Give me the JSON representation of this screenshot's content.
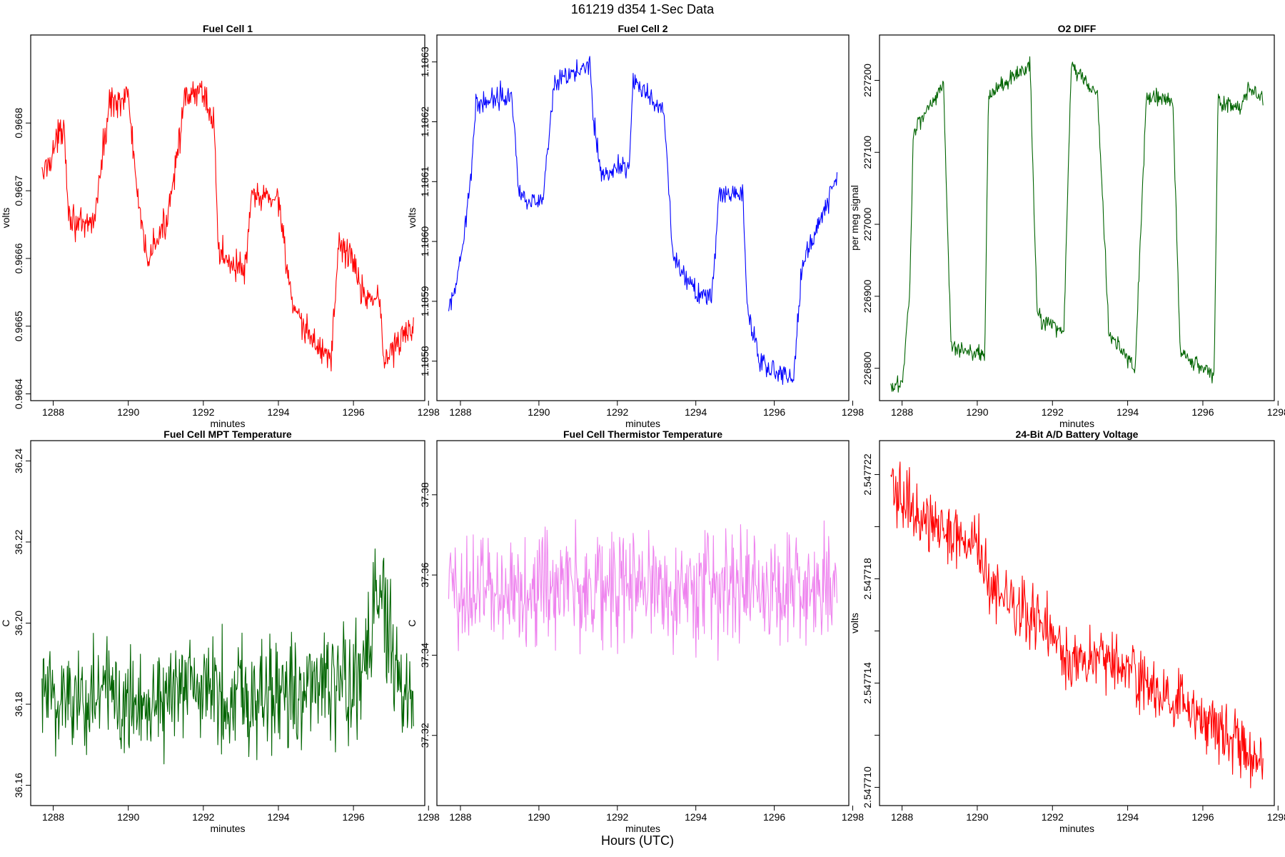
{
  "figure": {
    "title": "161219   d354   1-Sec Data",
    "xlabel": "Hours (UTC)"
  },
  "chart_data": [
    {
      "type": "line",
      "title": "Fuel Cell 1",
      "xlabel": "minutes",
      "ylabel": "volts",
      "color": "#ff0000",
      "xlim": [
        1287.4,
        1297.9
      ],
      "ylim": [
        0.96639,
        0.96693
      ],
      "xticks": [
        1288,
        1290,
        1292,
        1294,
        1296,
        1298
      ],
      "yticks": [
        0.9664,
        0.9665,
        0.9666,
        0.9667,
        0.9668
      ],
      "ytick_labels": [
        "0.9664",
        "0.9665",
        "0.9666",
        "0.9667",
        "0.9668"
      ],
      "noise": 1.8e-05,
      "x_range": [
        1287.7,
        1297.6
      ],
      "series": [
        {
          "x": [
            1287.7,
            1288.0,
            1288.3,
            1288.4,
            1288.8,
            1289.1,
            1289.5,
            1290.0,
            1290.3,
            1290.5,
            1291.0,
            1291.5,
            1292.0,
            1292.3,
            1292.4,
            1293.1,
            1293.3,
            1294.0,
            1294.4,
            1294.6,
            1295.4,
            1295.6,
            1296.0,
            1296.2,
            1296.7,
            1296.8,
            1297.6
          ],
          "y": [
            0.96672,
            0.96676,
            0.9668,
            0.96667,
            0.96664,
            0.96666,
            0.96683,
            0.96684,
            0.96666,
            0.9666,
            0.96665,
            0.96683,
            0.96685,
            0.96679,
            0.96661,
            0.96658,
            0.96669,
            0.96669,
            0.96652,
            0.9665,
            0.96645,
            0.96662,
            0.9666,
            0.96655,
            0.96654,
            0.96645,
            0.9665
          ]
        }
      ]
    },
    {
      "type": "line",
      "title": "Fuel Cell 2",
      "xlabel": "minutes",
      "ylabel": "volts",
      "color": "#0000ff",
      "xlim": [
        1287.4,
        1297.9
      ],
      "ylim": [
        1.185734,
        1.186345
      ],
      "xticks": [
        1288,
        1290,
        1292,
        1294,
        1296,
        1298
      ],
      "yticks": [
        1.1858,
        1.1859,
        1.186,
        1.1861,
        1.1862,
        1.1863
      ],
      "ytick_labels": [
        "1.1858",
        "1.1859",
        "1.1860",
        "1.1861",
        "1.1862",
        "1.1863"
      ],
      "noise": 1.4e-05,
      "x_range": [
        1287.7,
        1297.6
      ],
      "series": [
        {
          "x": [
            1287.7,
            1288.0,
            1288.1,
            1288.3,
            1288.4,
            1289.3,
            1289.5,
            1290.1,
            1290.2,
            1290.4,
            1291.3,
            1291.4,
            1291.6,
            1292.3,
            1292.4,
            1293.2,
            1293.4,
            1293.8,
            1294.4,
            1294.6,
            1295.2,
            1295.3,
            1295.6,
            1296.5,
            1296.7,
            1297.5,
            1297.6
          ],
          "y": [
            1.18588,
            1.18596,
            1.18601,
            1.18614,
            1.18623,
            1.18625,
            1.18608,
            1.18606,
            1.18614,
            1.18626,
            1.1863,
            1.1862,
            1.18611,
            1.18613,
            1.18627,
            1.18621,
            1.18598,
            1.18593,
            1.1859,
            1.18608,
            1.18608,
            1.1859,
            1.1858,
            1.18577,
            1.18596,
            1.18609,
            1.1861
          ]
        }
      ]
    },
    {
      "type": "line",
      "title": "O2 DIFF",
      "xlabel": "minutes",
      "ylabel": "per meg signal",
      "color": "#006400",
      "xlim": [
        1287.4,
        1297.9
      ],
      "ylim": [
        226755,
        227263
      ],
      "xticks": [
        1288,
        1290,
        1292,
        1294,
        1296,
        1298
      ],
      "yticks": [
        226800,
        226900,
        227000,
        227100,
        227200
      ],
      "ytick_labels": [
        "226800",
        "226900",
        "227000",
        "227100",
        "227200"
      ],
      "noise": 9,
      "x_range": [
        1287.7,
        1297.6
      ],
      "series": [
        {
          "x": [
            1287.7,
            1288.0,
            1288.2,
            1288.3,
            1289.1,
            1289.3,
            1290.2,
            1290.3,
            1291.4,
            1291.6,
            1292.3,
            1292.5,
            1293.2,
            1293.5,
            1294.2,
            1294.5,
            1295.2,
            1295.4,
            1296.3,
            1296.4,
            1297.0,
            1297.2,
            1297.6
          ],
          "y": [
            226770,
            226780,
            226900,
            227130,
            227195,
            226830,
            226820,
            227180,
            227220,
            226870,
            226850,
            227220,
            227180,
            226850,
            226800,
            227180,
            227170,
            226820,
            226790,
            227170,
            227160,
            227190,
            227175
          ]
        }
      ]
    },
    {
      "type": "line",
      "title": "Fuel Cell MPT Temperature",
      "xlabel": "minutes",
      "ylabel": "C",
      "color": "#006400",
      "xlim": [
        1287.4,
        1297.9
      ],
      "ylim": [
        36.155,
        36.245
      ],
      "xticks": [
        1288,
        1290,
        1292,
        1294,
        1296,
        1298
      ],
      "yticks": [
        36.16,
        36.18,
        36.2,
        36.22,
        36.24
      ],
      "ytick_labels": [
        "36.16",
        "36.18",
        "36.20",
        "36.22",
        "36.24"
      ],
      "noise": 0.011,
      "x_range": [
        1287.7,
        1297.6
      ],
      "series": [
        {
          "x": [
            1287.7,
            1290.0,
            1292.0,
            1294.0,
            1296.2,
            1296.4,
            1296.8,
            1297.1,
            1297.6
          ],
          "y": [
            36.182,
            36.182,
            36.183,
            36.183,
            36.185,
            36.198,
            36.205,
            36.185,
            36.182
          ]
        }
      ]
    },
    {
      "type": "line",
      "title": "Fuel Cell Thermistor Temperature",
      "xlabel": "minutes",
      "ylabel": "C",
      "color": "#ee82ee",
      "xlim": [
        1287.4,
        1297.9
      ],
      "ylim": [
        37.3025,
        37.3935
      ],
      "xticks": [
        1288,
        1290,
        1292,
        1294,
        1296,
        1298
      ],
      "yticks": [
        37.32,
        37.34,
        37.36,
        37.38
      ],
      "ytick_labels": [
        "37.32",
        "37.34",
        "37.36",
        "37.38"
      ],
      "noise": 0.011,
      "x_range": [
        1287.7,
        1297.6
      ],
      "series": [
        {
          "x": [
            1287.7,
            1290.0,
            1292.0,
            1294.0,
            1296.0,
            1297.6
          ],
          "y": [
            37.356,
            37.357,
            37.357,
            37.357,
            37.357,
            37.356
          ]
        }
      ]
    },
    {
      "type": "line",
      "title": "24-Bit A/D Battery Voltage",
      "xlabel": "minutes",
      "ylabel": "volts",
      "color": "#ff0000",
      "xlim": [
        1287.4,
        1297.9
      ],
      "ylim": [
        2.5477093,
        2.5477233
      ],
      "xticks": [
        1288,
        1290,
        1292,
        1294,
        1296,
        1298
      ],
      "yticks": [
        2.54771,
        2.547712,
        2.547714,
        2.547716,
        2.547718,
        2.54772,
        2.547722
      ],
      "ytick_labels": [
        "2.547710",
        "",
        "2.547714",
        "",
        "2.547718",
        "",
        "2.547722"
      ],
      "noise": 9e-07,
      "x_range": [
        1287.7,
        1297.6
      ],
      "series": [
        {
          "x": [
            1287.7,
            1288.5,
            1289.2,
            1290.2,
            1290.3,
            1291.2,
            1292.2,
            1292.3,
            1293.3,
            1294.2,
            1294.3,
            1295.3,
            1296.3,
            1297.0,
            1297.6
          ],
          "y": [
            2.5477215,
            2.5477204,
            2.5477198,
            2.547719,
            2.5477175,
            2.5477168,
            2.547716,
            2.5477148,
            2.547715,
            2.5477144,
            2.547714,
            2.5477132,
            2.5477122,
            2.5477116,
            2.547711
          ]
        }
      ]
    }
  ]
}
